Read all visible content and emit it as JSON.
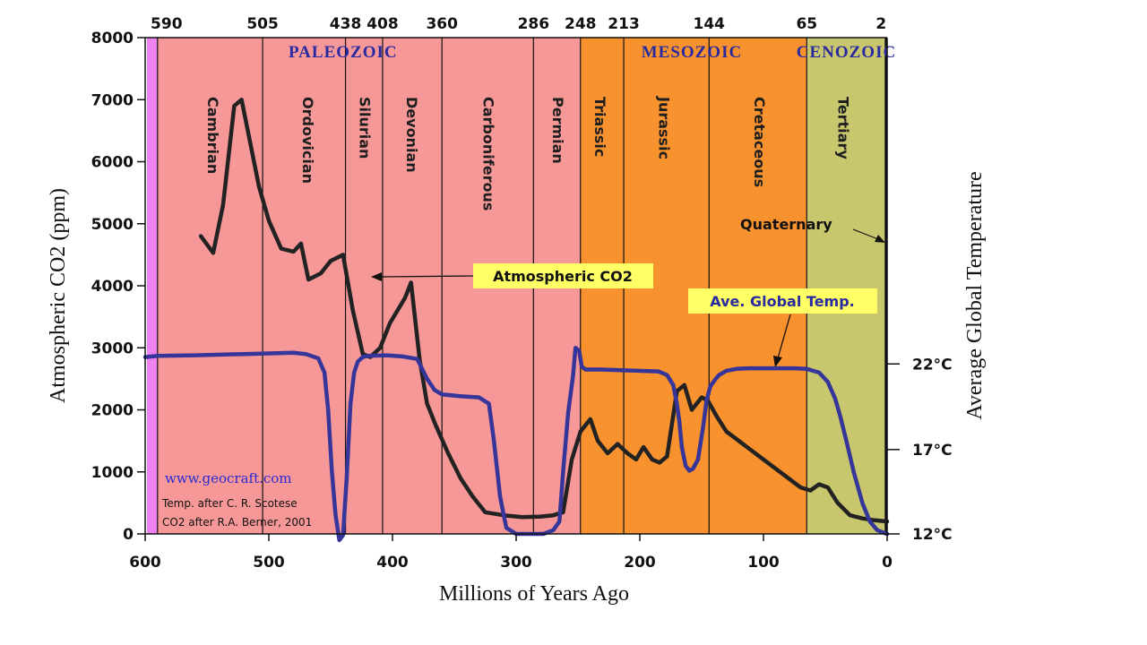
{
  "chart_data": {
    "type": "line",
    "title": "",
    "xlabel": "Millions of Years Ago",
    "ylabel": "Atmospheric CO2 (ppm)",
    "ylabel_right": "Average Global Temperature",
    "xlim": [
      600,
      0
    ],
    "ylim": [
      0,
      8000
    ],
    "x_ticks": [
      "600",
      "500",
      "400",
      "300",
      "200",
      "100",
      "0"
    ],
    "y_ticks": [
      "0",
      "1000",
      "2000",
      "3000",
      "4000",
      "5000",
      "6000",
      "7000",
      "8000"
    ],
    "y2_ticks": [
      {
        "label": "22°C",
        "ppm_level": 2740
      },
      {
        "label": "17°C",
        "ppm_level": 1360
      },
      {
        "label": "12°C",
        "ppm_level": 0
      }
    ],
    "boundary_labels": [
      {
        "label": "590",
        "ma": 590
      },
      {
        "label": "505",
        "ma": 505
      },
      {
        "label": "438",
        "ma": 438
      },
      {
        "label": "408",
        "ma": 408
      },
      {
        "label": "360",
        "ma": 360
      },
      {
        "label": "286",
        "ma": 286
      },
      {
        "label": "248",
        "ma": 248
      },
      {
        "label": "213",
        "ma": 213
      },
      {
        "label": "144",
        "ma": 144
      },
      {
        "label": "65",
        "ma": 65
      },
      {
        "label": "2",
        "ma": 2
      }
    ],
    "eras": [
      {
        "name": "PALEOZOIC",
        "center_ma": 440
      },
      {
        "name": "MESOZOIC",
        "center_ma": 158
      },
      {
        "name": "CENOZOIC",
        "center_ma": 33
      }
    ],
    "periods": [
      {
        "name": "Cambrian",
        "from": 590,
        "to": 505,
        "label_ma": 545,
        "color": "#f79898"
      },
      {
        "name": "Ordovician",
        "from": 505,
        "to": 438,
        "label_ma": 468,
        "color": "#f79898"
      },
      {
        "name": "Silurian",
        "from": 438,
        "to": 408,
        "label_ma": 422,
        "color": "#f79898"
      },
      {
        "name": "Devonian",
        "from": 408,
        "to": 360,
        "label_ma": 384,
        "color": "#f79898"
      },
      {
        "name": "Carboniferous",
        "from": 360,
        "to": 286,
        "label_ma": 322,
        "color": "#f79898"
      },
      {
        "name": "Permian",
        "from": 286,
        "to": 248,
        "label_ma": 266,
        "color": "#f79898"
      },
      {
        "name": "Triassic",
        "from": 248,
        "to": 213,
        "label_ma": 232,
        "color": "#f7922e"
      },
      {
        "name": "Jurassic",
        "from": 213,
        "to": 144,
        "label_ma": 180,
        "color": "#f7922e"
      },
      {
        "name": "Cretaceous",
        "from": 144,
        "to": 65,
        "label_ma": 103,
        "color": "#f7922e"
      },
      {
        "name": "Tertiary",
        "from": 65,
        "to": 2,
        "label_ma": 35,
        "color": "#c9c76e"
      }
    ],
    "precambrian_color": "#ee82ee",
    "quaternary_label": "Quaternary",
    "series": [
      {
        "name": "Atmospheric CO2",
        "color": "#222222",
        "x": [
          555,
          545,
          537,
          528,
          522,
          515,
          508,
          500,
          490,
          480,
          474,
          468,
          458,
          450,
          440,
          432,
          424,
          418,
          410,
          402,
          396,
          390,
          385,
          378,
          372,
          365,
          355,
          345,
          335,
          325,
          310,
          295,
          280,
          270,
          262,
          255,
          248,
          240,
          234,
          226,
          218,
          210,
          203,
          197,
          190,
          184,
          178,
          170,
          164,
          158,
          150,
          145,
          138,
          130,
          120,
          110,
          100,
          90,
          80,
          70,
          62,
          55,
          48,
          40,
          30,
          20,
          10,
          0
        ],
        "y": [
          4800,
          4530,
          5300,
          6900,
          7000,
          6300,
          5600,
          5050,
          4600,
          4550,
          4680,
          4100,
          4200,
          4400,
          4500,
          3600,
          2900,
          2850,
          3000,
          3400,
          3600,
          3800,
          4050,
          2800,
          2100,
          1750,
          1300,
          900,
          600,
          350,
          300,
          270,
          280,
          300,
          350,
          1200,
          1650,
          1850,
          1500,
          1300,
          1450,
          1300,
          1200,
          1400,
          1200,
          1150,
          1250,
          2300,
          2400,
          2000,
          2200,
          2150,
          1900,
          1650,
          1500,
          1350,
          1200,
          1050,
          900,
          750,
          700,
          800,
          750,
          500,
          300,
          250,
          220,
          200
        ]
      },
      {
        "name": "Ave. Global Temp.",
        "color": "#35359a",
        "x": [
          600,
          590,
          560,
          520,
          480,
          470,
          460,
          455,
          452,
          449,
          446,
          443,
          440,
          437,
          434,
          431,
          428,
          424,
          420,
          405,
          392,
          380,
          372,
          366,
          360,
          345,
          330,
          322,
          318,
          313,
          308,
          300,
          290,
          278,
          270,
          265,
          262,
          258,
          254,
          252,
          249,
          247,
          244,
          240,
          232,
          215,
          185,
          178,
          173,
          170,
          168,
          166,
          163,
          160,
          157,
          153,
          149,
          146,
          143,
          139,
          136,
          130,
          122,
          112,
          100,
          85,
          75,
          65,
          55,
          48,
          42,
          38,
          33,
          27,
          20,
          14,
          8,
          3,
          0
        ],
        "y": [
          2850,
          2870,
          2880,
          2900,
          2920,
          2900,
          2830,
          2600,
          2000,
          1000,
          300,
          -100,
          -20,
          900,
          2100,
          2600,
          2780,
          2850,
          2870,
          2880,
          2860,
          2820,
          2500,
          2320,
          2250,
          2220,
          2200,
          2100,
          1500,
          600,
          100,
          0,
          0,
          0,
          60,
          200,
          1000,
          1950,
          2550,
          3000,
          2950,
          2700,
          2650,
          2650,
          2650,
          2640,
          2620,
          2560,
          2400,
          2100,
          1800,
          1400,
          1100,
          1020,
          1050,
          1200,
          1700,
          2150,
          2380,
          2490,
          2560,
          2630,
          2660,
          2670,
          2670,
          2670,
          2670,
          2660,
          2600,
          2450,
          2180,
          1900,
          1500,
          1000,
          500,
          200,
          60,
          20,
          0
        ]
      }
    ],
    "annotations": {
      "co2_label": "Atmospheric CO2",
      "temp_label": "Ave. Global Temp.",
      "site": "www.geocraft.com",
      "credit_temp": "Temp. after C. R. Scotese",
      "credit_co2": "CO2 after R.A. Berner, 2001"
    }
  }
}
